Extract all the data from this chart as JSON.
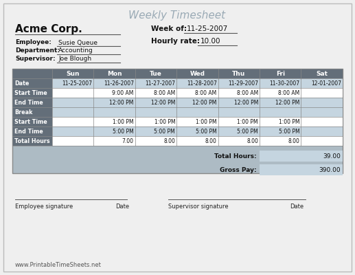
{
  "title": "Weekly Timesheet",
  "company": "Acme Corp.",
  "week_of_label": "Week of:",
  "week_of_value": "11-25-2007",
  "hourly_rate_label": "Hourly rate:",
  "hourly_rate_value": "10.00",
  "employee_label": "Employee:",
  "employee_value": "Susie Queue",
  "department_label": "Department:",
  "department_value": "Accounting",
  "supervisor_label": "Supervisor:",
  "supervisor_value": "Joe Blough",
  "days": [
    "Sun",
    "Mon",
    "Tue",
    "Wed",
    "Thu",
    "Fri",
    "Sat"
  ],
  "dates": [
    "11-25-2007",
    "11-26-2007",
    "11-27-2007",
    "11-28-2007",
    "11-29-2007",
    "11-30-2007",
    "12-01-2007"
  ],
  "row_labels": [
    "Date",
    "Start Time",
    "End Time",
    "Break",
    "Start Time",
    "End Time",
    "Total Hours"
  ],
  "am_start": [
    "",
    "9:00 AM",
    "8:00 AM",
    "8:00 AM",
    "8:00 AM",
    "8:00 AM",
    ""
  ],
  "am_end": [
    "",
    "12:00 PM",
    "12:00 PM",
    "12:00 PM",
    "12:00 PM",
    "12:00 PM",
    ""
  ],
  "pm_start": [
    "",
    "1:00 PM",
    "1:00 PM",
    "1:00 PM",
    "1:00 PM",
    "1:00 PM",
    ""
  ],
  "pm_end": [
    "",
    "5:00 PM",
    "5:00 PM",
    "5:00 PM",
    "5:00 PM",
    "5:00 PM",
    ""
  ],
  "total_hours_row": [
    "",
    "7.00",
    "8.00",
    "8.00",
    "8.00",
    "8.00",
    ""
  ],
  "total_hours_label": "Total Hours:",
  "total_hours_value": "39.00",
  "gross_pay_label": "Gross Pay:",
  "gross_pay_value": "390.00",
  "employee_sig_label": "Employee signature",
  "date_label": "Date",
  "supervisor_sig_label": "Supervisor signature",
  "website": "www.PrintableTimeSheets.net",
  "header_color": "#636e79",
  "row_label_color_dark": "#636e79",
  "break_row_color": "#636e79",
  "alt_row_color": "#c5d5e0",
  "white_color": "#ffffff",
  "gray_bg": "#adbbc4",
  "page_bg": "#efefef",
  "border_color": "#888888",
  "text_dark": "#111111",
  "text_white": "#ffffff",
  "title_color": "#9aaab5"
}
